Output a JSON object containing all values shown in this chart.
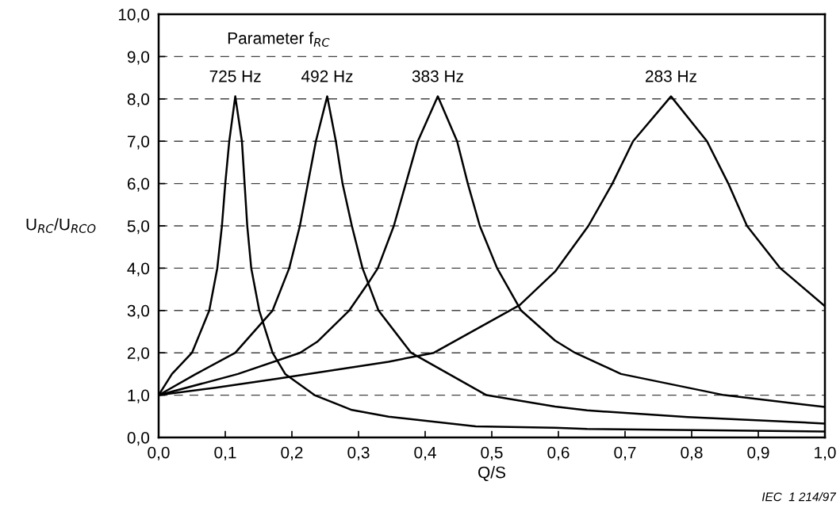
{
  "chart_data": {
    "type": "line",
    "xlabel": "Q/S",
    "ylabel": "U$_{RC}$/U$_{RCO}$",
    "annotations": [
      "Parameter f$_{RC}$",
      "IEC  1 214/97"
    ],
    "xlim": [
      0,
      1
    ],
    "ylim": [
      0,
      10
    ],
    "xticks": [
      {
        "value": 0,
        "label": "0,0"
      },
      {
        "value": 0.1,
        "label": "0,1"
      },
      {
        "value": 0.2,
        "label": "0,2"
      },
      {
        "value": 0.3,
        "label": "0,3"
      },
      {
        "value": 0.4,
        "label": "0,4"
      },
      {
        "value": 0.5,
        "label": "0,5"
      },
      {
        "value": 0.6,
        "label": "0,6"
      },
      {
        "value": 0.7,
        "label": "0,7"
      },
      {
        "value": 0.8,
        "label": "0,8"
      },
      {
        "value": 0.9,
        "label": "0,9"
      },
      {
        "value": 1,
        "label": "1,0"
      }
    ],
    "yticks": [
      {
        "value": 0,
        "label": "0,0"
      },
      {
        "value": 1,
        "label": "1,0"
      },
      {
        "value": 2,
        "label": "2,0"
      },
      {
        "value": 3,
        "label": "3,0"
      },
      {
        "value": 4,
        "label": "4,0"
      },
      {
        "value": 5,
        "label": "5,0"
      },
      {
        "value": 6,
        "label": "6,0"
      },
      {
        "value": 7,
        "label": "7,0"
      },
      {
        "value": 8,
        "label": "8,0"
      },
      {
        "value": 9,
        "label": "9,0"
      },
      {
        "value": 10,
        "label": "10,0"
      }
    ],
    "grid": "y",
    "legend": false,
    "marker": "none",
    "line_style": "solid",
    "series": [
      {
        "name": "725 Hz",
        "color": "#000000",
        "x": [
          0,
          0.02,
          0.05,
          0.076,
          0.088,
          0.095,
          0.1,
          0.106,
          0.115,
          0.125,
          0.129,
          0.133,
          0.139,
          0.151,
          0.171,
          0.19,
          0.234,
          0.29,
          0.345,
          0.476,
          0.595,
          0.643,
          1.0
        ],
        "values": [
          1,
          1.5,
          2,
          3,
          4,
          5,
          6,
          7,
          8.06,
          7,
          6,
          5,
          4,
          3,
          2,
          1.5,
          1,
          0.65,
          0.49,
          0.26,
          0.23,
          0.2,
          0.14
        ]
      },
      {
        "name": "492 Hz",
        "color": "#000000",
        "x": [
          0,
          0.056,
          0.115,
          0.171,
          0.196,
          0.212,
          0.224,
          0.236,
          0.253,
          0.266,
          0.276,
          0.29,
          0.306,
          0.33,
          0.379,
          0.492,
          0.595,
          0.643,
          0.794,
          1.0
        ],
        "values": [
          1,
          1.5,
          2,
          3,
          4,
          5,
          6,
          7,
          8.06,
          7,
          6,
          5,
          4,
          3,
          2,
          1,
          0.73,
          0.64,
          0.48,
          0.33
        ]
      },
      {
        "name": "383 Hz",
        "color": "#000000",
        "x": [
          0,
          0.119,
          0.212,
          0.238,
          0.286,
          0.315,
          0.329,
          0.353,
          0.371,
          0.389,
          0.419,
          0.448,
          0.464,
          0.482,
          0.508,
          0.544,
          0.595,
          0.625,
          0.694,
          0.849,
          1.0
        ],
        "values": [
          1,
          1.5,
          2,
          2.26,
          3,
          3.66,
          4,
          5,
          6,
          7,
          8.06,
          7,
          6,
          5,
          4,
          3,
          2.29,
          2,
          1.5,
          1,
          0.72
        ]
      },
      {
        "name": "283 Hz",
        "color": "#000000",
        "x": [
          0,
          0.083,
          0.179,
          0.345,
          0.413,
          0.542,
          0.595,
          0.645,
          0.681,
          0.712,
          0.769,
          0.823,
          0.855,
          0.883,
          0.933,
          1.0
        ],
        "values": [
          1,
          1.17,
          1.39,
          1.79,
          2,
          3.13,
          3.92,
          5,
          6,
          7,
          8.06,
          7,
          6,
          5,
          4,
          3.1
        ]
      }
    ]
  }
}
